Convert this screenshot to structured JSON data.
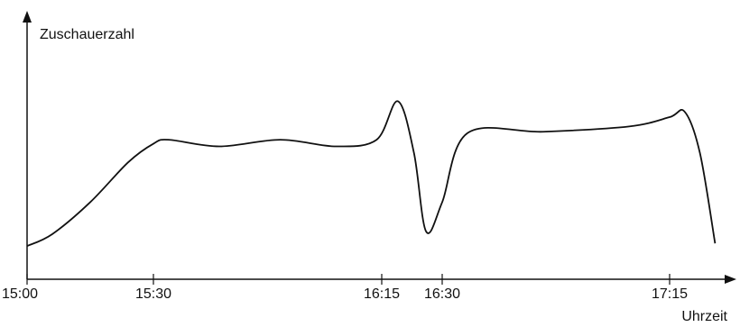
{
  "chart_data": {
    "type": "line",
    "y_label": "Zuschauerzahl",
    "x_label": "Uhrzeit",
    "x": [
      "15:00",
      "15:06",
      "15:15",
      "15:24",
      "15:30",
      "15:33",
      "15:43",
      "15:55",
      "16:06",
      "16:14",
      "16:19",
      "16:23",
      "16:26",
      "16:30",
      "16:35",
      "16:50",
      "17:07",
      "17:15",
      "17:18",
      "17:21",
      "17:24"
    ],
    "series": [
      {
        "color": "#111111",
        "values": [
          12.5,
          17,
          29,
          44,
          51,
          52.5,
          50,
          52.5,
          50,
          52.5,
          67,
          47.5,
          18,
          29,
          55,
          55.5,
          57.5,
          61,
          63,
          47.5,
          13.5
        ]
      }
    ],
    "xlim": [
      "15:00",
      "17:27"
    ],
    "xticks": [
      "15:00",
      "15:30",
      "16:15",
      "16:30",
      "17:15"
    ],
    "ylim": [
      0,
      100
    ],
    "grid": false
  }
}
